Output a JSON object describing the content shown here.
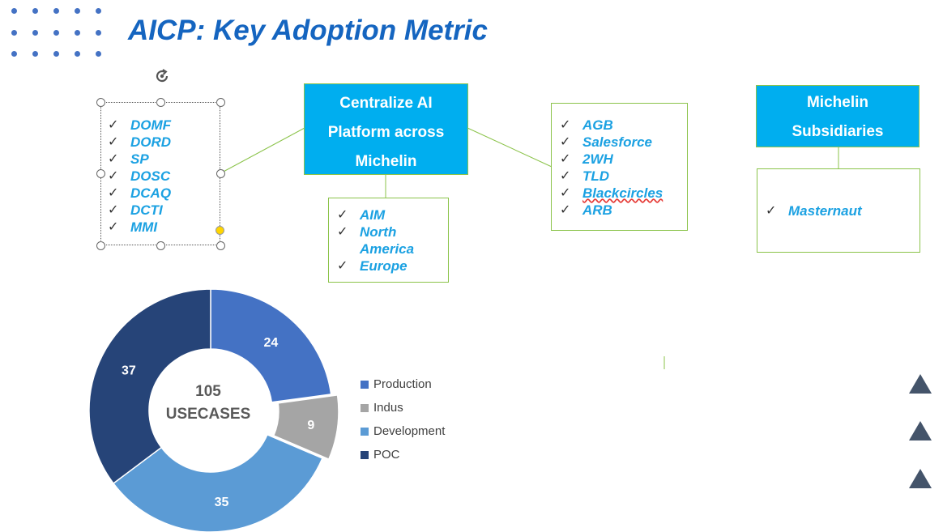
{
  "title": "AICP: Key Adoption Metric",
  "central_box": {
    "lines": [
      "Centralize AI",
      "Platform across",
      "Michelin"
    ]
  },
  "subsidiaries_box": {
    "lines": [
      "Michelin",
      "Subsidiaries"
    ]
  },
  "left_list": {
    "items": [
      "DOMF",
      "DORD",
      "SP",
      "DOSC",
      "DCAQ",
      "DCTI",
      "MMI"
    ]
  },
  "middle_list": {
    "items": [
      "AIM",
      "North America",
      "Europe"
    ]
  },
  "right_list": {
    "items": [
      "AGB",
      "Salesforce",
      "2WH",
      "TLD",
      "Blackcircles",
      "ARB"
    ]
  },
  "subsidiary_list": {
    "items": [
      "Masternaut"
    ]
  },
  "checkmark": "✓",
  "donut_center": {
    "number": "105",
    "label": "USECASES"
  },
  "colors": {
    "accent": "#00aeef",
    "title": "#1565c0",
    "border": "#8bc34a"
  },
  "chart_data": {
    "type": "pie",
    "style": "donut",
    "categories": [
      "Production",
      "Indus",
      "Development",
      "POC"
    ],
    "values": [
      24,
      9,
      35,
      37
    ],
    "colors": [
      "#4472c4",
      "#a5a5a5",
      "#5b9bd5",
      "#264478"
    ],
    "legend": "right"
  }
}
